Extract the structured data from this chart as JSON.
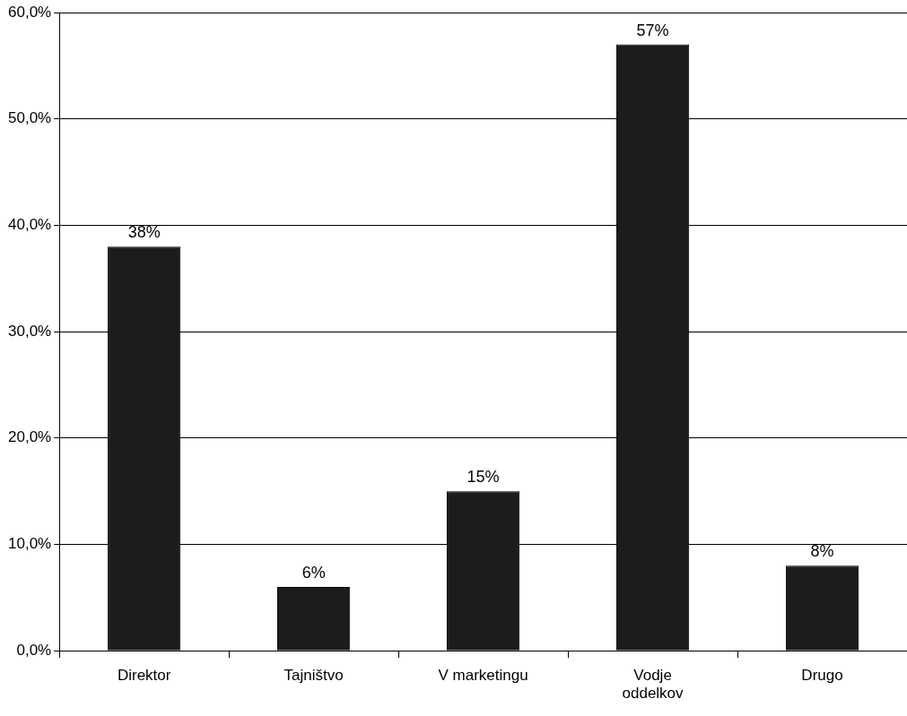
{
  "chart_data": {
    "type": "bar",
    "categories": [
      "Direktor",
      "Tajništvo",
      "V marketingu",
      "Vodje oddelkov",
      "Drugo"
    ],
    "values": [
      38,
      6,
      15,
      57,
      8
    ],
    "color": "#1c1c1c",
    "value_labels": [
      "38%",
      "6%",
      "15%",
      "57%",
      "8%"
    ],
    "ylim": [
      0,
      60
    ],
    "yticks": [
      {
        "value": 0,
        "label": "0,0%"
      },
      {
        "value": 10,
        "label": "10,0%"
      },
      {
        "value": 20,
        "label": "20,0%"
      },
      {
        "value": 30,
        "label": "30,0%"
      },
      {
        "value": 40,
        "label": "40,0%"
      },
      {
        "value": 50,
        "label": "50,0%"
      },
      {
        "value": 60,
        "label": "60,0%"
      }
    ],
    "grid": "y",
    "legend": false
  }
}
